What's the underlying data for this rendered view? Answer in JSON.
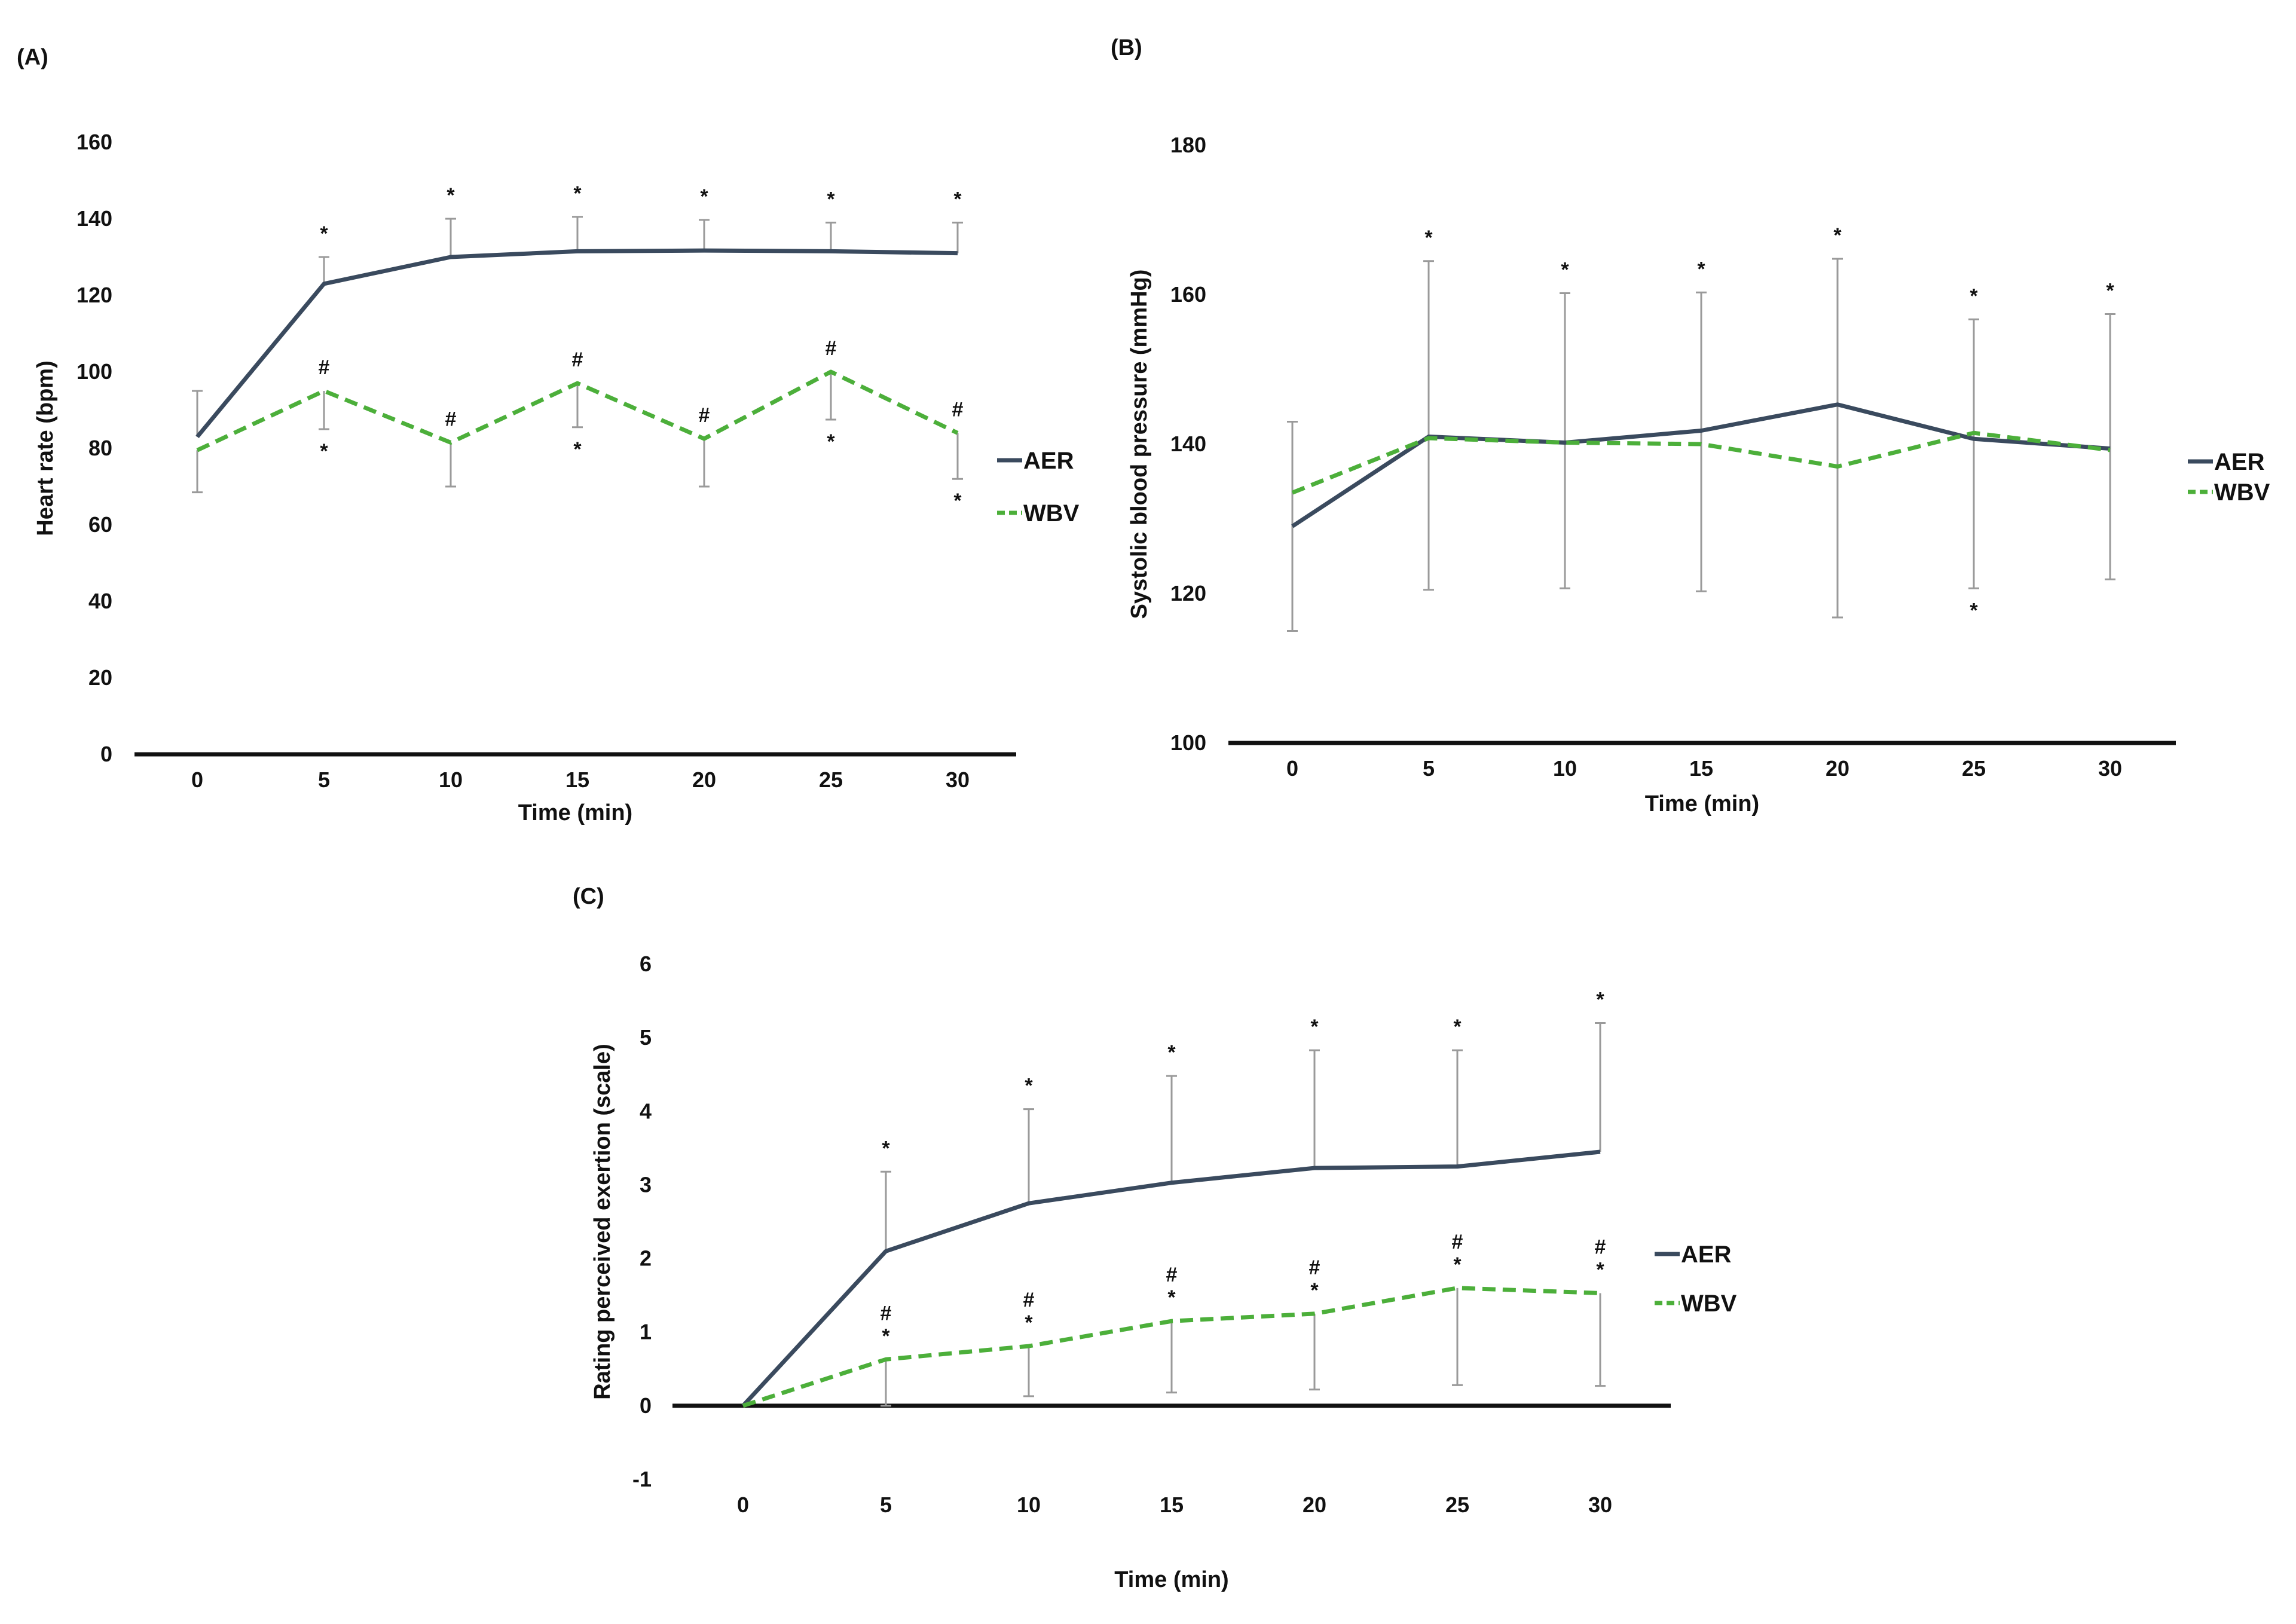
{
  "colors": {
    "aer": "#3a4a5e",
    "wbv": "#4caf3a",
    "axis": "#111111",
    "errorbar": "#9a9a9a"
  },
  "chart_data": [
    {
      "type": "line",
      "panel_label": "(A)",
      "xlabel": "Time (min)",
      "ylabel": "Heart rate (bpm)",
      "categories": [
        "0",
        "5",
        "10",
        "15",
        "20",
        "25",
        "30"
      ],
      "ylim": [
        0,
        160
      ],
      "yticks": [
        "0",
        "20",
        "40",
        "60",
        "80",
        "100",
        "120",
        "140",
        "160"
      ],
      "legend_position": "right",
      "series": [
        {
          "name": "AER",
          "style": "solid",
          "values": [
            83,
            123,
            130,
            131.5,
            131.7,
            131.5,
            131
          ],
          "err_up": [
            12,
            7,
            10,
            9,
            8,
            7.5,
            8
          ],
          "err_down": [
            0,
            0,
            0,
            0,
            0,
            0,
            0
          ],
          "marks_above": [
            "",
            "*",
            "*",
            "*",
            "*",
            "*",
            "*"
          ],
          "marks_below": [
            "",
            "",
            "",
            "",
            "",
            "",
            ""
          ]
        },
        {
          "name": "WBV",
          "style": "dashed",
          "values": [
            79.5,
            95,
            81.5,
            97,
            82.5,
            100,
            84
          ],
          "err_up": [
            0,
            0,
            0,
            0,
            0,
            0,
            0
          ],
          "err_down": [
            11,
            10,
            11.5,
            11.5,
            12.5,
            12.5,
            12
          ],
          "marks_above": [
            "",
            "#",
            "#",
            "#",
            "#",
            "#",
            "#"
          ],
          "marks_below": [
            "",
            "*",
            "",
            "*",
            "",
            "*",
            "*"
          ]
        }
      ]
    },
    {
      "type": "line",
      "panel_label": "(B)",
      "xlabel": "Time (min)",
      "ylabel": "Systolic blood pressure (mmHg)",
      "categories": [
        "0",
        "5",
        "10",
        "15",
        "20",
        "25",
        "30"
      ],
      "ylim": [
        100,
        180
      ],
      "yticks": [
        "100",
        "120",
        "140",
        "160",
        "180"
      ],
      "legend_position": "right",
      "series": [
        {
          "name": "AER",
          "style": "solid",
          "values": [
            129,
            141,
            140.2,
            141.8,
            145.3,
            140.7,
            139.4
          ],
          "err_up": [
            14,
            23.5,
            20,
            18.5,
            19.5,
            16,
            18
          ],
          "err_down": [
            14,
            20.5,
            19.5,
            21.5,
            28.5,
            20,
            17.5
          ],
          "marks_above": [
            "",
            "*",
            "*",
            "*",
            "*",
            "*",
            "*"
          ],
          "marks_below": [
            "",
            "",
            "",
            "",
            "",
            "*",
            ""
          ]
        },
        {
          "name": "WBV",
          "style": "dashed",
          "values": [
            133.5,
            140.8,
            140.2,
            140,
            137,
            141.5,
            139.2
          ],
          "err_up": [
            0,
            0,
            0,
            0,
            0,
            0,
            0
          ],
          "err_down": [
            0,
            0,
            0,
            0,
            0,
            0,
            0
          ],
          "marks_above": [
            "",
            "",
            "",
            "",
            "",
            "",
            ""
          ],
          "marks_below": [
            "",
            "",
            "",
            "",
            "",
            "",
            ""
          ]
        }
      ]
    },
    {
      "type": "line",
      "panel_label": "(C)",
      "xlabel": "Time (min)",
      "ylabel": "Rating perceived exertion (scale)",
      "categories": [
        "0",
        "5",
        "10",
        "15",
        "20",
        "25",
        "30"
      ],
      "ylim": [
        -1,
        6
      ],
      "yticks": [
        "-1",
        "0",
        "1",
        "2",
        "3",
        "4",
        "5",
        "6"
      ],
      "legend_position": "right",
      "series": [
        {
          "name": "AER",
          "style": "solid",
          "values": [
            0,
            2.1,
            2.75,
            3.03,
            3.23,
            3.25,
            3.45
          ],
          "err_up": [
            0,
            1.08,
            1.28,
            1.45,
            1.6,
            1.58,
            1.75
          ],
          "err_down": [
            0,
            0,
            0,
            0,
            0,
            0,
            0
          ],
          "marks_above": [
            "",
            "*",
            "*",
            "*",
            "*",
            "*",
            "*"
          ],
          "marks_below": [
            "",
            "",
            "",
            "",
            "",
            "",
            ""
          ]
        },
        {
          "name": "WBV",
          "style": "dashed",
          "values": [
            0,
            0.63,
            0.81,
            1.15,
            1.25,
            1.6,
            1.53
          ],
          "err_up": [
            0,
            0,
            0,
            0,
            0,
            0,
            0
          ],
          "err_down": [
            0,
            0.63,
            0.68,
            0.97,
            1.03,
            1.32,
            1.26
          ],
          "marks_above": [
            "",
            "#*",
            "#*",
            "#*",
            "#*",
            "#*",
            "#*"
          ],
          "marks_below": [
            "",
            "",
            "",
            "",
            "",
            "",
            ""
          ]
        }
      ]
    }
  ]
}
